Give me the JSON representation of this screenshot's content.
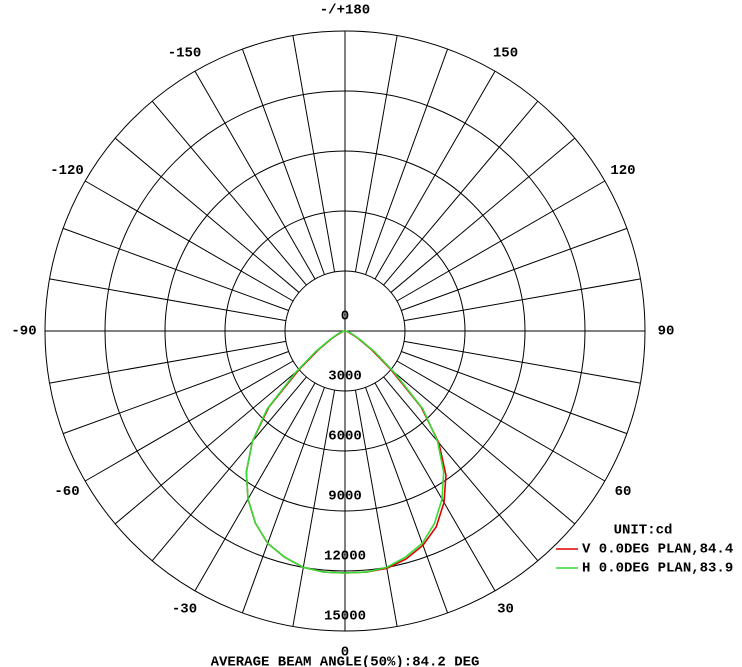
{
  "chart_data": {
    "type": "polar",
    "theta_direction": "clockwise",
    "theta_zero": "bottom",
    "angular_grid_step": 10,
    "rlim": [
      0,
      15000
    ],
    "rticks": [
      0,
      3000,
      6000,
      9000,
      12000,
      15000
    ],
    "thetaticks": [
      {
        "value": 180,
        "label": "-/+180"
      },
      150,
      120,
      90,
      60,
      30,
      0,
      -30,
      -60,
      -90,
      -120,
      -150
    ],
    "unit_label": "UNIT:cd",
    "footer": "AVERAGE BEAM ANGLE(50%):84.2 DEG",
    "x": [
      -90,
      -85,
      -80,
      -75,
      -70,
      -65,
      -60,
      -55,
      -50,
      -45,
      -40,
      -35,
      -30,
      -25,
      -20,
      -15,
      -10,
      -5,
      0,
      5,
      10,
      15,
      20,
      25,
      30,
      35,
      40,
      45,
      50,
      55,
      60,
      65,
      70,
      75,
      80,
      85,
      90
    ],
    "series": [
      {
        "name": "V 0.0DEG PLAN,84.4",
        "color": "#e00000",
        "values": [
          0,
          20,
          50,
          100,
          200,
          400,
          800,
          1600,
          3000,
          5400,
          7200,
          8600,
          9700,
          10600,
          11300,
          11700,
          12000,
          12100,
          12100,
          12100,
          12050,
          11800,
          11400,
          10800,
          9900,
          8800,
          7300,
          5400,
          3000,
          1600,
          800,
          400,
          200,
          100,
          50,
          20,
          0
        ]
      },
      {
        "name": "H 0.0DEG PLAN,83.9",
        "color": "#33dd33",
        "values": [
          0,
          30,
          80,
          150,
          300,
          500,
          900,
          1800,
          3200,
          5500,
          7200,
          8600,
          9700,
          10600,
          11300,
          11700,
          12000,
          12100,
          12100,
          12100,
          12000,
          11700,
          11300,
          10600,
          9700,
          8600,
          7200,
          5500,
          3200,
          1800,
          900,
          500,
          300,
          150,
          80,
          30,
          0
        ]
      }
    ]
  }
}
